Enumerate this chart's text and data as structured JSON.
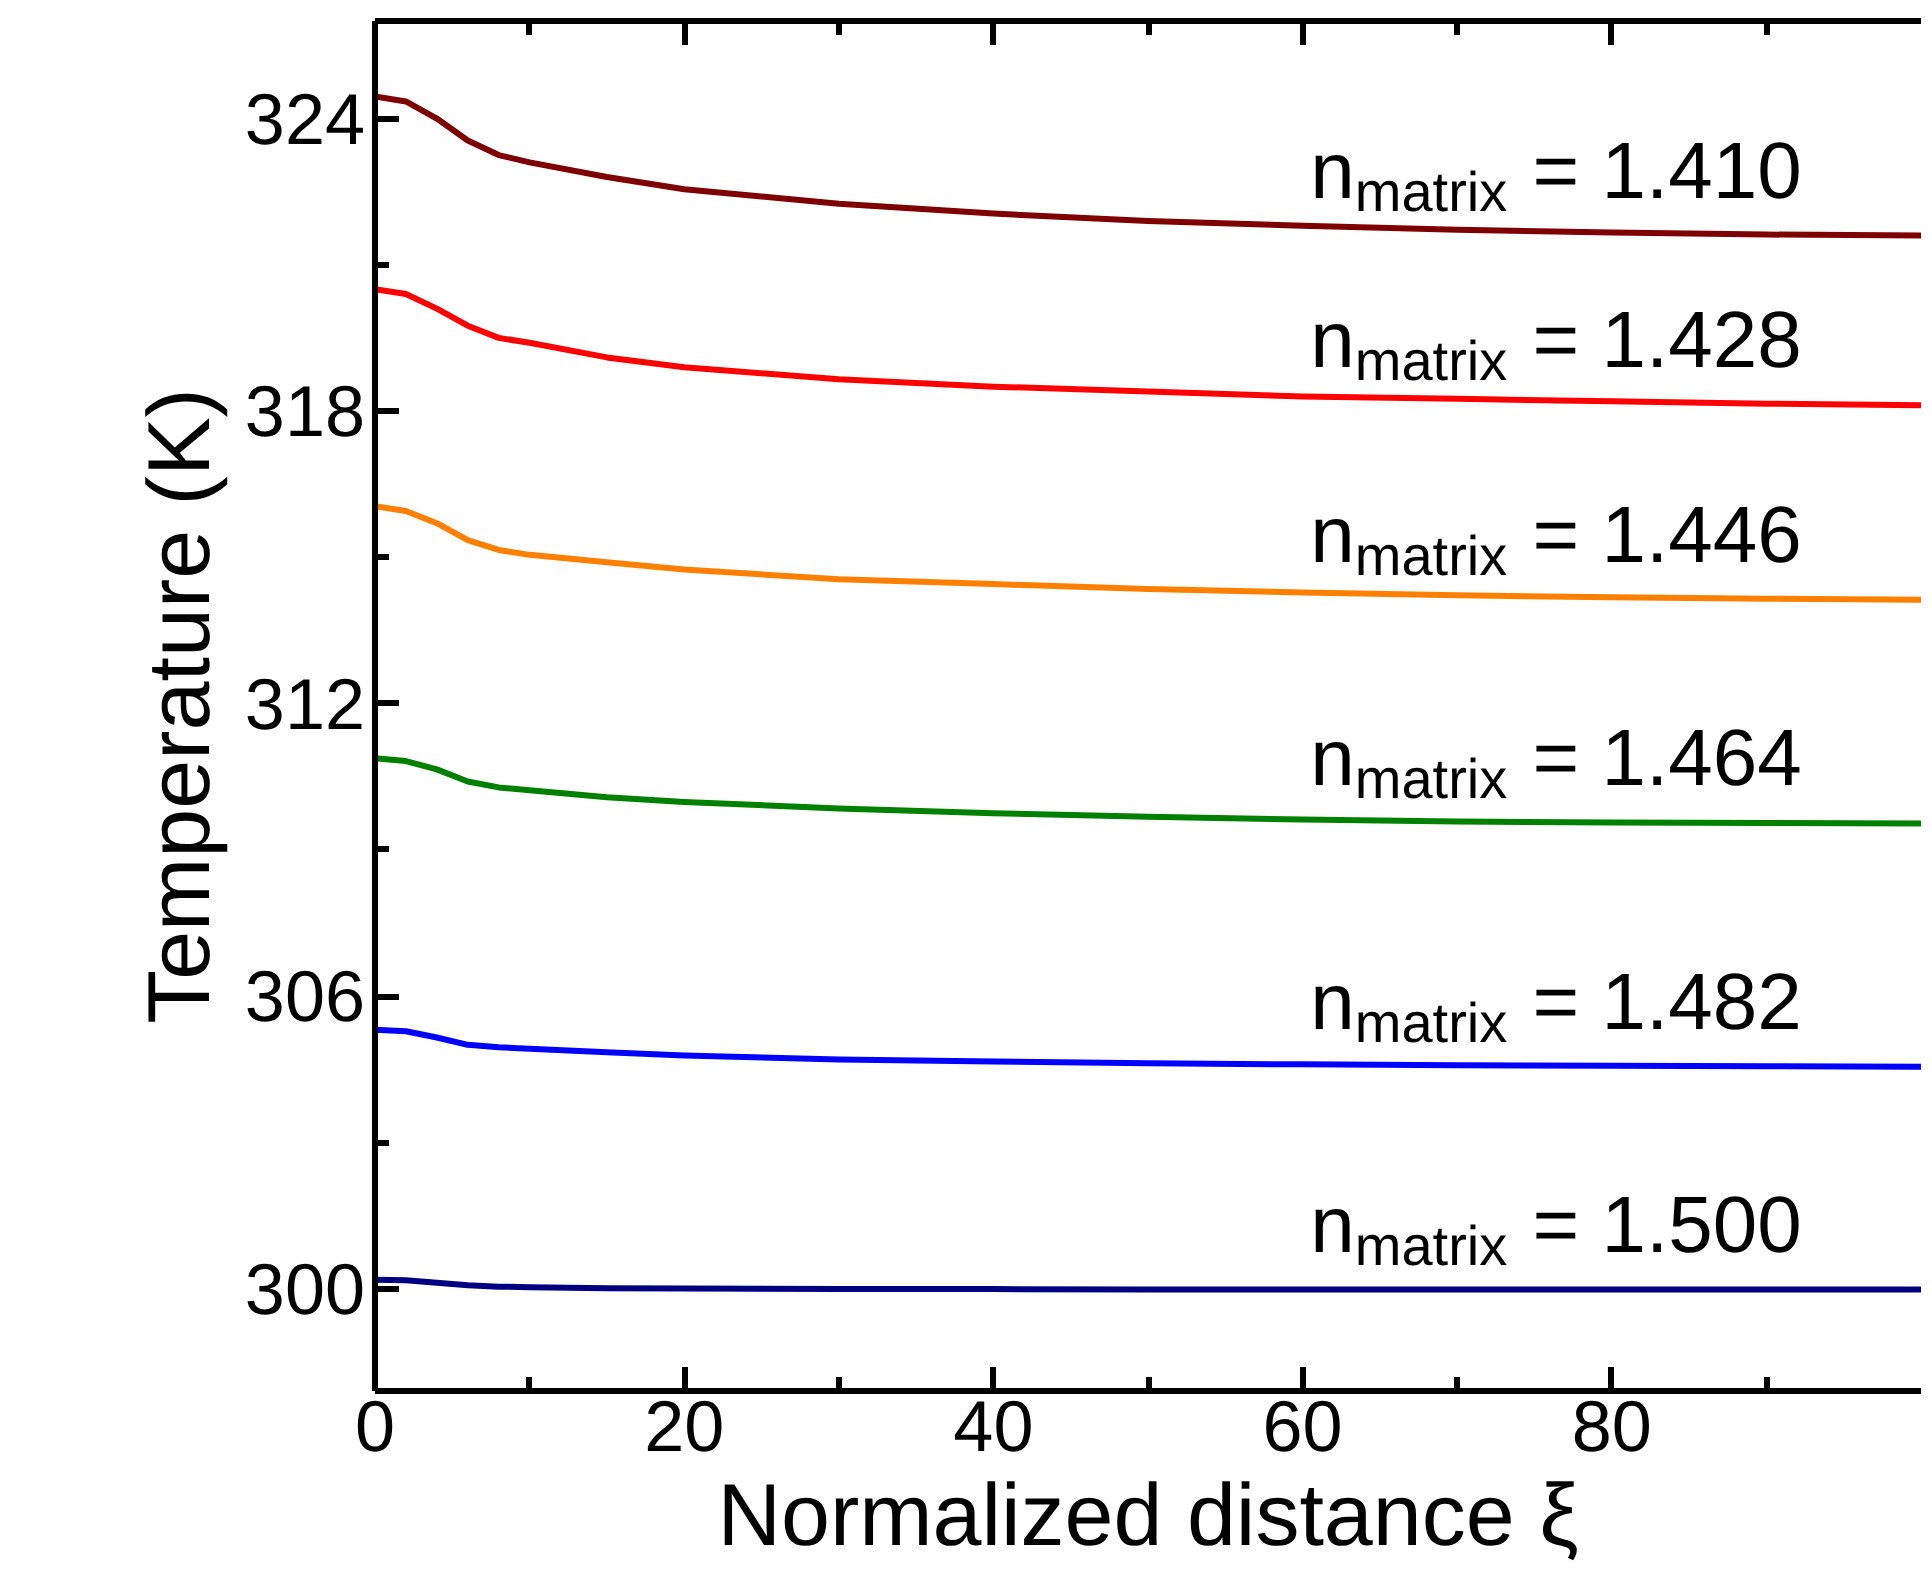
{
  "chart_data": {
    "type": "line",
    "xlabel": "Normalized distance ξ",
    "ylabel": "Temperature (K)",
    "x": [
      0,
      2,
      4,
      6,
      8,
      10,
      15,
      20,
      30,
      40,
      50,
      60,
      70,
      80,
      90,
      100
    ],
    "xlim": [
      0,
      100
    ],
    "xticks": [
      0,
      20,
      40,
      60,
      80
    ],
    "ylim": [
      297.9,
      326
    ],
    "yticks": [
      300,
      306,
      312,
      318,
      324
    ],
    "grid": false,
    "legend": false,
    "marker": "none",
    "line_style": "solid",
    "series": [
      {
        "name": "n$_{matrix}$ = 1.410",
        "color": "#7f0000",
        "values": [
          324.45,
          324.35,
          324.0,
          323.55,
          323.25,
          323.1,
          322.8,
          322.55,
          322.25,
          322.05,
          321.9,
          321.8,
          321.72,
          321.66,
          321.62,
          321.6
        ]
      },
      {
        "name": "n$_{matrix}$ = 1.428",
        "color": "#ff0000",
        "values": [
          320.5,
          320.4,
          320.1,
          319.75,
          319.5,
          319.4,
          319.1,
          318.9,
          318.65,
          318.5,
          318.4,
          318.3,
          318.25,
          318.2,
          318.15,
          318.12
        ]
      },
      {
        "name": "n$_{matrix}$ = 1.446",
        "color": "#ff8000",
        "values": [
          316.05,
          315.95,
          315.7,
          315.35,
          315.15,
          315.05,
          314.9,
          314.75,
          314.55,
          314.45,
          314.35,
          314.28,
          314.22,
          314.18,
          314.15,
          314.13
        ]
      },
      {
        "name": "n$_{matrix}$ = 1.464",
        "color": "#008000",
        "values": [
          310.88,
          310.82,
          310.65,
          310.4,
          310.28,
          310.22,
          310.08,
          309.98,
          309.85,
          309.75,
          309.68,
          309.62,
          309.58,
          309.56,
          309.55,
          309.54
        ]
      },
      {
        "name": "n$_{matrix}$ = 1.482",
        "color": "#0000ff",
        "values": [
          305.31,
          305.28,
          305.15,
          305.0,
          304.95,
          304.92,
          304.85,
          304.78,
          304.7,
          304.66,
          304.62,
          304.6,
          304.58,
          304.57,
          304.56,
          304.55
        ]
      },
      {
        "name": "n$_{matrix}$ = 1.500",
        "color": "#000080",
        "values": [
          300.18,
          300.17,
          300.12,
          300.07,
          300.04,
          300.03,
          300.01,
          300.0,
          299.99,
          299.99,
          299.98,
          299.98,
          299.98,
          299.98,
          299.98,
          299.98
        ]
      }
    ]
  }
}
